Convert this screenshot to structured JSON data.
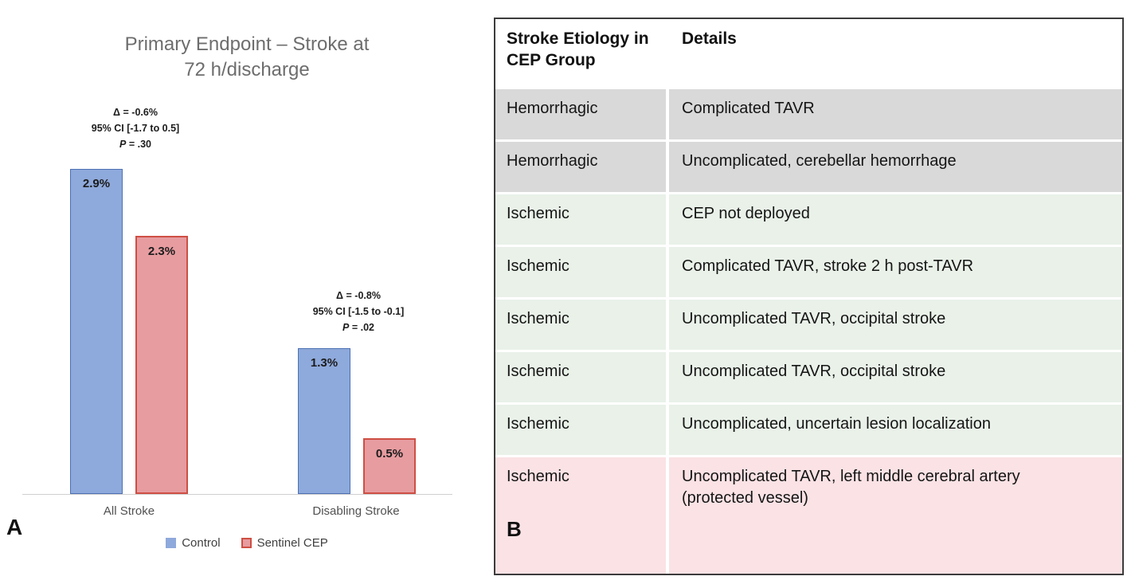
{
  "figure": {
    "panel_a_label": "A",
    "panel_b_label": "B"
  },
  "chart_data": {
    "type": "bar",
    "title": "Primary Endpoint – Stroke at\n72 h/discharge",
    "categories": [
      "All Stroke",
      "Disabling Stroke"
    ],
    "series": [
      {
        "name": "Control",
        "values": [
          2.9,
          1.3
        ],
        "value_labels": [
          "2.9%",
          "1.3%"
        ],
        "fill": "#8EA9DB",
        "border": "#4D71B4"
      },
      {
        "name": "Sentinel CEP",
        "values": [
          2.3,
          0.5
        ],
        "value_labels": [
          "2.3%",
          "0.5%"
        ],
        "fill": "#E79CA0",
        "border": "#CE4F44"
      }
    ],
    "annotations": [
      {
        "delta": "Δ = -0.6%",
        "ci": "95% CI [-1.7 to 0.5]",
        "p_symbol": "P",
        "p_rest": " = .30"
      },
      {
        "delta": "Δ = -0.8%",
        "ci": "95% CI [-1.5 to -0.1]",
        "p_symbol": "P",
        "p_rest": " = .02"
      }
    ],
    "ylabel": "",
    "xlabel": "",
    "ylim": [
      0,
      3.55
    ],
    "y_axis_visible": false,
    "gridlines": false,
    "legend_position": "bottom"
  },
  "table": {
    "columns": [
      "Stroke Etiology in CEP Group",
      "Details"
    ],
    "rows": [
      {
        "etiology": "Hemorrhagic",
        "details": "Complicated TAVR",
        "tone": "gray"
      },
      {
        "etiology": "Hemorrhagic",
        "details": "Uncomplicated, cerebellar hemorrhage",
        "tone": "gray"
      },
      {
        "etiology": "Ischemic",
        "details": "CEP not deployed",
        "tone": "green"
      },
      {
        "etiology": "Ischemic",
        "details": "Complicated TAVR, stroke 2 h post-TAVR",
        "tone": "green"
      },
      {
        "etiology": "Ischemic",
        "details": "Uncomplicated TAVR, occipital stroke",
        "tone": "green"
      },
      {
        "etiology": "Ischemic",
        "details": "Uncomplicated TAVR, occipital stroke",
        "tone": "green"
      },
      {
        "etiology": "Ischemic",
        "details": "Uncomplicated, uncertain lesion localization",
        "tone": "green"
      },
      {
        "etiology": "Ischemic",
        "details": "Uncomplicated TAVR, left middle cerebral artery (protected vessel)",
        "tone": "pink"
      }
    ]
  },
  "colors": {
    "control_fill": "#8EA9DB",
    "control_border": "#4D71B4",
    "cep_fill": "#E79CA0",
    "cep_border": "#CE4F44",
    "row_gray": "#D9D9D9",
    "row_green": "#E9F1E9",
    "row_pink": "#FAE2E5",
    "table_border": "#3C3C3C",
    "title_gray": "#6D6D6D",
    "axis_line": "#D0D0D0"
  }
}
